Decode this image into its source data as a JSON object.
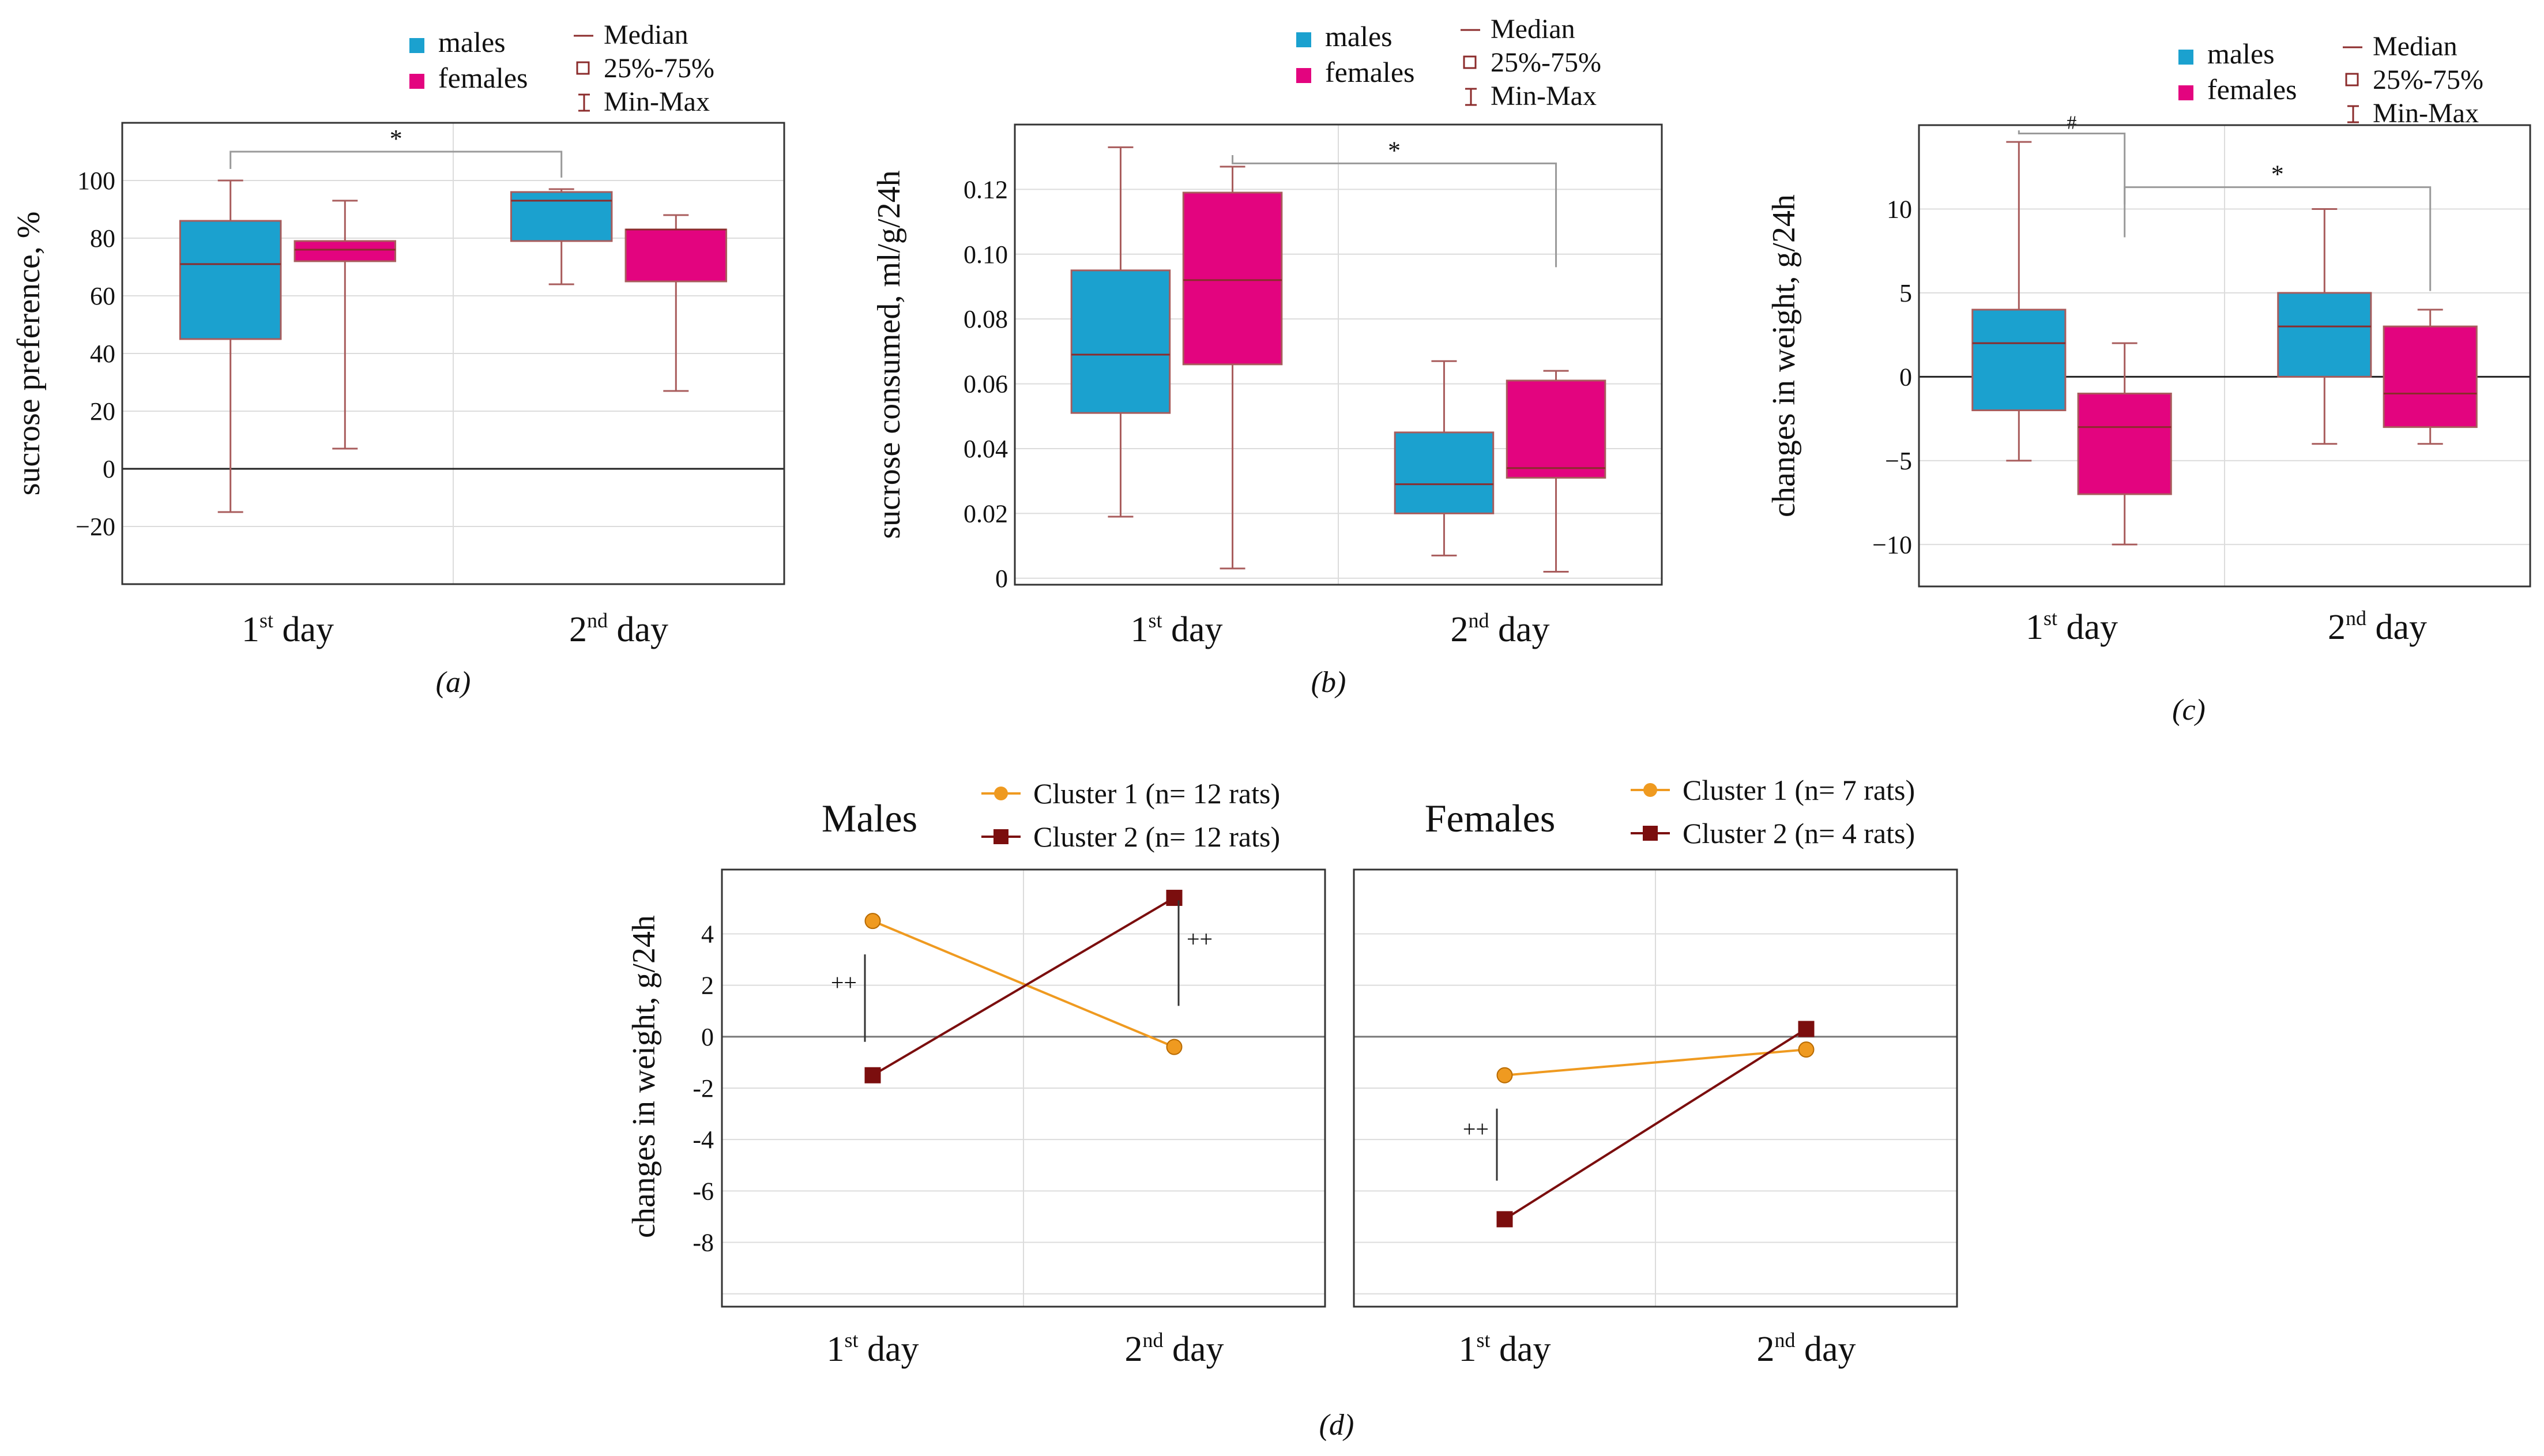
{
  "figure": {
    "colors": {
      "males": "#1ba1cf",
      "females": "#e3047f",
      "whisker": "#a85c5c",
      "median": "#8b2b2b",
      "cluster1": "#ef9a20",
      "cluster2": "#7b0e0e",
      "bracket": "#9a9a9a",
      "grid": "#dcdcdc"
    },
    "box_legend": {
      "males": "males",
      "females": "females",
      "median": "Median",
      "iqr": "25%-75%",
      "range": "Min-Max"
    },
    "panel_labels": [
      "(a)",
      "(b)",
      "(c)",
      "(d)"
    ]
  },
  "chart_data": [
    {
      "id": "a",
      "type": "box",
      "ylabel": "sucrose preference, %",
      "ylim": [
        -40,
        120
      ],
      "yticks": [
        -20,
        0,
        20,
        40,
        60,
        80,
        100
      ],
      "ytick_labels": [
        "−20",
        "0",
        "20",
        "40",
        "60",
        "80",
        "100"
      ],
      "zero_line": true,
      "categories": [
        {
          "pre": "1",
          "sup": "st",
          "post": " day"
        },
        {
          "pre": "2",
          "sup": "nd",
          "post": " day"
        }
      ],
      "series": [
        {
          "name": "males",
          "boxes": [
            {
              "min": -15,
              "q1": 45,
              "median": 71,
              "q3": 86,
              "max": 100
            },
            {
              "min": 64,
              "q1": 79,
              "median": 93,
              "q3": 96,
              "max": 97
            }
          ]
        },
        {
          "name": "females",
          "boxes": [
            {
              "min": 7,
              "q1": 72,
              "median": 76,
              "q3": 79,
              "max": 93
            },
            {
              "min": 27,
              "q1": 65,
              "median": 83,
              "q3": 83,
              "max": 88
            }
          ]
        }
      ],
      "annotations": [
        {
          "text": "*",
          "from": "1st day males",
          "to": "2nd day males",
          "level": 110
        }
      ]
    },
    {
      "id": "b",
      "type": "box",
      "ylabel": "sucrose consumed, ml/g/24h",
      "ylim": [
        -0.002,
        0.14
      ],
      "yticks": [
        0,
        0.02,
        0.04,
        0.06,
        0.08,
        0.1,
        0.12
      ],
      "ytick_labels": [
        "0",
        "0.02",
        "0.04",
        "0.06",
        "0.08",
        "0.10",
        "0.12"
      ],
      "zero_line": false,
      "categories": [
        {
          "pre": "1",
          "sup": "st",
          "post": " day"
        },
        {
          "pre": "2",
          "sup": "nd",
          "post": " day"
        }
      ],
      "series": [
        {
          "name": "males",
          "boxes": [
            {
              "min": 0.019,
              "q1": 0.051,
              "median": 0.069,
              "q3": 0.095,
              "max": 0.133
            },
            {
              "min": 0.007,
              "q1": 0.02,
              "median": 0.029,
              "q3": 0.045,
              "max": 0.067
            }
          ]
        },
        {
          "name": "females",
          "boxes": [
            {
              "min": 0.003,
              "q1": 0.066,
              "median": 0.092,
              "q3": 0.119,
              "max": 0.127
            },
            {
              "min": 0.002,
              "q1": 0.031,
              "median": 0.034,
              "q3": 0.061,
              "max": 0.064
            }
          ]
        }
      ],
      "annotations": [
        {
          "text": "*",
          "from": "1st day females",
          "to": "2nd day females",
          "level": 0.128
        }
      ]
    },
    {
      "id": "c",
      "type": "box",
      "ylabel": "changes in weight, g/24h",
      "ylim": [
        -12.5,
        15
      ],
      "yticks": [
        -10,
        -5,
        0,
        5,
        10
      ],
      "ytick_labels": [
        "−10",
        "−5",
        "0",
        "5",
        "10"
      ],
      "zero_line": true,
      "categories": [
        {
          "pre": "1",
          "sup": "st",
          "post": " day"
        },
        {
          "pre": "2",
          "sup": "nd",
          "post": " day"
        }
      ],
      "series": [
        {
          "name": "males",
          "boxes": [
            {
              "min": -5,
              "q1": -2,
              "median": 2,
              "q3": 4,
              "max": 14
            },
            {
              "min": -4,
              "q1": 0,
              "median": 3,
              "q3": 5,
              "max": 10
            }
          ]
        },
        {
          "name": "females",
          "boxes": [
            {
              "min": -10,
              "q1": -7,
              "median": -3,
              "q3": -1,
              "max": 2
            },
            {
              "min": -4,
              "q1": -3,
              "median": -1,
              "q3": 3,
              "max": 4
            }
          ]
        }
      ],
      "annotations": [
        {
          "text": "#",
          "from": "1st day males",
          "to": "1st day females",
          "level": 14.5
        },
        {
          "text": "*",
          "from": "1st day females",
          "to": "2nd day females",
          "level": 11.3
        }
      ]
    },
    {
      "id": "d-males",
      "type": "line",
      "title": "Males",
      "ylabel": "changes in weight, g/24h",
      "ylim": [
        -10.5,
        6.5
      ],
      "yticks": [
        -8,
        -6,
        -4,
        -2,
        0,
        2,
        4
      ],
      "ytick_labels": [
        "-8",
        "-6",
        "-4",
        "-2",
        "0",
        "2",
        "4"
      ],
      "zero_line": true,
      "categories": [
        {
          "pre": "1",
          "sup": "st",
          "post": " day"
        },
        {
          "pre": "2",
          "sup": "nd",
          "post": " day"
        }
      ],
      "series": [
        {
          "name": "Cluster 1 (n= 12 rats)",
          "values": [
            4.5,
            -0.4
          ]
        },
        {
          "name": "Cluster 2 (n= 12 rats)",
          "values": [
            -1.5,
            5.4
          ]
        }
      ],
      "annotations": [
        {
          "text": "++"
        },
        {
          "text": "++"
        }
      ]
    },
    {
      "id": "d-females",
      "type": "line",
      "title": "Females",
      "ylabel": "",
      "ylim": [
        -10.5,
        6.5
      ],
      "yticks": [
        -8,
        -6,
        -4,
        -2,
        0,
        2,
        4
      ],
      "ytick_labels": [],
      "zero_line": true,
      "categories": [
        {
          "pre": "1",
          "sup": "st",
          "post": " day"
        },
        {
          "pre": "2",
          "sup": "nd",
          "post": " day"
        }
      ],
      "series": [
        {
          "name": "Cluster 1 (n= 7 rats)",
          "values": [
            -1.5,
            -0.5
          ]
        },
        {
          "name": "Cluster 2 (n= 4 rats)",
          "values": [
            -7.1,
            0.3
          ]
        }
      ],
      "annotations": [
        {
          "text": "++"
        }
      ]
    }
  ]
}
